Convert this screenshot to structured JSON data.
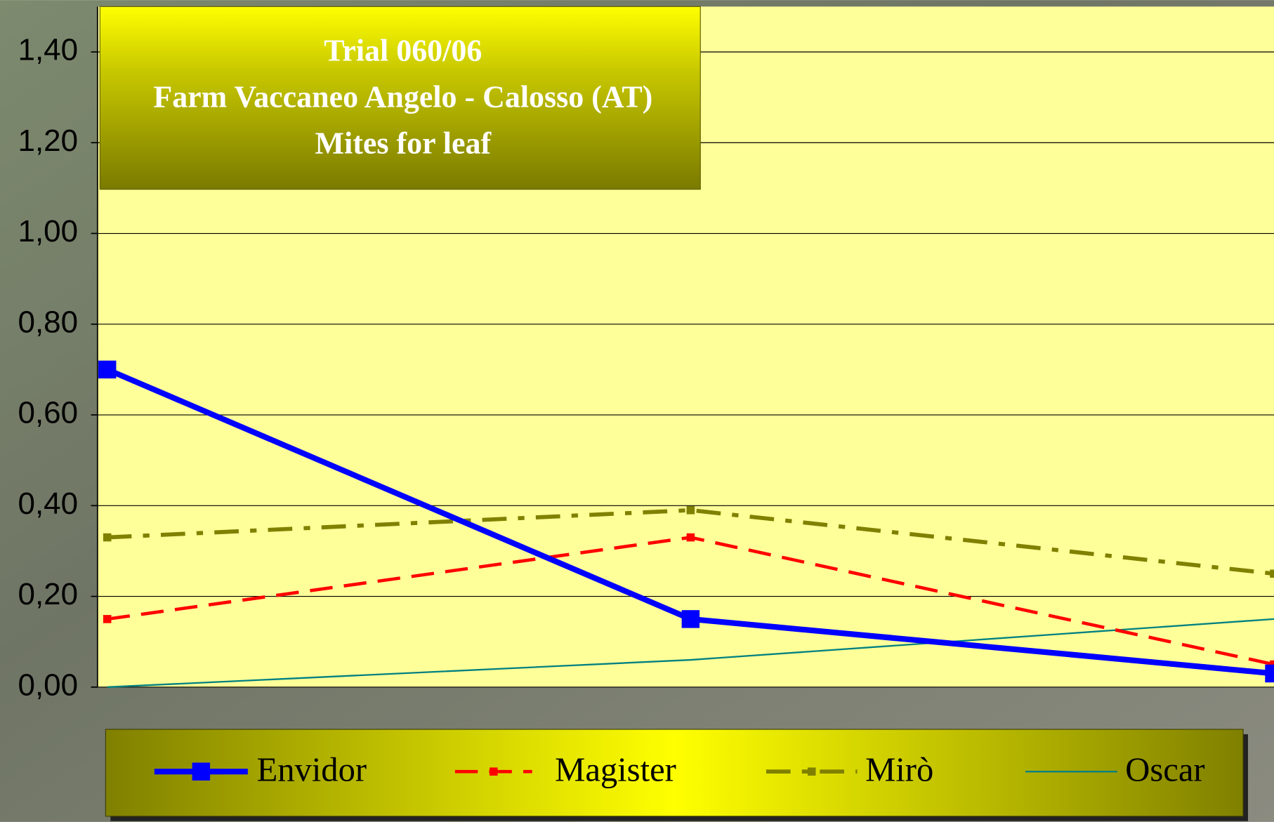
{
  "chart_data": {
    "type": "line",
    "title": [
      "Trial 060/06",
      "Farm Vaccaneo Angelo - Calosso (AT)",
      "Mites for leaf"
    ],
    "categories": [
      null,
      null,
      null
    ],
    "series": [
      {
        "name": "Envidor",
        "color": "#0000ff",
        "values": [
          0.7,
          0.15,
          0.03
        ]
      },
      {
        "name": "Magister",
        "color": "#ff0000",
        "values": [
          0.15,
          0.33,
          0.05
        ]
      },
      {
        "name": "Mirò",
        "color": "#808000",
        "values": [
          0.33,
          0.39,
          0.25
        ]
      },
      {
        "name": "Oscar",
        "color": "#008080",
        "values": [
          0.0,
          0.06,
          0.15
        ]
      }
    ],
    "ylim": [
      0,
      1.5
    ],
    "yticks": [
      {
        "value": 0,
        "label": "0,00"
      },
      {
        "value": 0.2,
        "label": "0,20"
      },
      {
        "value": 0.4,
        "label": "0,40"
      },
      {
        "value": 0.6,
        "label": "0,60"
      },
      {
        "value": 0.8,
        "label": "0,80"
      },
      {
        "value": 1.0,
        "label": "1,00"
      },
      {
        "value": 1.2,
        "label": "1,20"
      },
      {
        "value": 1.4,
        "label": "1,40"
      }
    ],
    "grid": true
  }
}
